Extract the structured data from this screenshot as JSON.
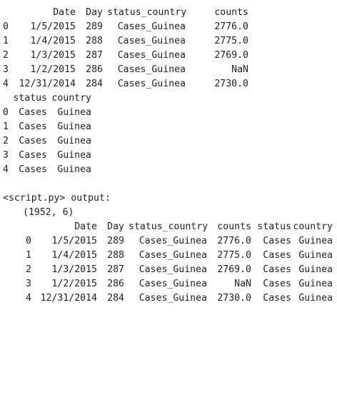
{
  "df1": {
    "columns": [
      "Date",
      "Day",
      "status_country",
      "counts"
    ],
    "rows": [
      {
        "index": "0",
        "Date": "1/5/2015",
        "Day": "289",
        "status_country": "Cases_Guinea",
        "counts": "2776.0"
      },
      {
        "index": "1",
        "Date": "1/4/2015",
        "Day": "288",
        "status_country": "Cases_Guinea",
        "counts": "2775.0"
      },
      {
        "index": "2",
        "Date": "1/3/2015",
        "Day": "287",
        "status_country": "Cases_Guinea",
        "counts": "2769.0"
      },
      {
        "index": "3",
        "Date": "1/2/2015",
        "Day": "286",
        "status_country": "Cases_Guinea",
        "counts": "NaN"
      },
      {
        "index": "4",
        "Date": "12/31/2014",
        "Day": "284",
        "status_country": "Cases_Guinea",
        "counts": "2730.0"
      }
    ]
  },
  "df2": {
    "columns": [
      "status",
      "country"
    ],
    "rows": [
      {
        "index": "0",
        "status": "Cases",
        "country": "Guinea"
      },
      {
        "index": "1",
        "status": "Cases",
        "country": "Guinea"
      },
      {
        "index": "2",
        "status": "Cases",
        "country": "Guinea"
      },
      {
        "index": "3",
        "status": "Cases",
        "country": "Guinea"
      },
      {
        "index": "4",
        "status": "Cases",
        "country": "Guinea"
      }
    ]
  },
  "output_label": "<script.py> output:",
  "shape": "(1952, 6)",
  "df3": {
    "columns": [
      "Date",
      "Day",
      "status_country",
      "counts",
      "status",
      "country"
    ],
    "rows": [
      {
        "index": "0",
        "Date": "1/5/2015",
        "Day": "289",
        "status_country": "Cases_Guinea",
        "counts": "2776.0",
        "status": "Cases",
        "country": "Guinea"
      },
      {
        "index": "1",
        "Date": "1/4/2015",
        "Day": "288",
        "status_country": "Cases_Guinea",
        "counts": "2775.0",
        "status": "Cases",
        "country": "Guinea"
      },
      {
        "index": "2",
        "Date": "1/3/2015",
        "Day": "287",
        "status_country": "Cases_Guinea",
        "counts": "2769.0",
        "status": "Cases",
        "country": "Guinea"
      },
      {
        "index": "3",
        "Date": "1/2/2015",
        "Day": "286",
        "status_country": "Cases_Guinea",
        "counts": "NaN",
        "status": "Cases",
        "country": "Guinea"
      },
      {
        "index": "4",
        "Date": "12/31/2014",
        "Day": "284",
        "status_country": "Cases_Guinea",
        "counts": "2730.0",
        "status": "Cases",
        "country": "Guinea"
      }
    ]
  }
}
